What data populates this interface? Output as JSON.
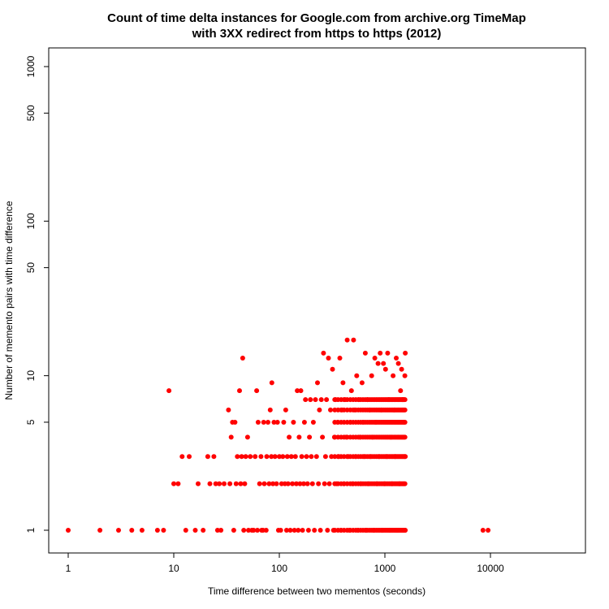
{
  "chart_data": {
    "type": "scatter",
    "title_line1": "Count of time delta instances for Google.com from archive.org TimeMap",
    "title_line2": "with 3XX redirect from https to https (2012)",
    "xlabel": "Time difference between two mementos (seconds)",
    "ylabel": "Number of memento pairs with time difference",
    "x_scale": "log",
    "y_scale": "log",
    "xlim": [
      0.6,
      60000
    ],
    "ylim": [
      0.85,
      1400
    ],
    "grid": false,
    "point_color": "#ff0000",
    "x_ticks": [
      {
        "value": 1,
        "label": "1"
      },
      {
        "value": 10,
        "label": "10"
      },
      {
        "value": 100,
        "label": "100"
      },
      {
        "value": 1000,
        "label": "1000"
      },
      {
        "value": 10000,
        "label": "10000"
      }
    ],
    "y_ticks": [
      {
        "value": 1,
        "label": "1"
      },
      {
        "value": 5,
        "label": "5"
      },
      {
        "value": 10,
        "label": "10"
      },
      {
        "value": 50,
        "label": "50"
      },
      {
        "value": 100,
        "label": "100"
      },
      {
        "value": 500,
        "label": "500"
      },
      {
        "value": 1000,
        "label": "1000"
      }
    ],
    "points": [
      [
        1,
        1
      ],
      [
        2,
        1
      ],
      [
        3,
        1
      ],
      [
        4,
        1
      ],
      [
        5,
        1
      ],
      [
        7,
        1
      ],
      [
        8,
        1
      ],
      [
        9,
        8
      ],
      [
        10,
        2
      ],
      [
        11,
        2
      ],
      [
        12,
        3
      ],
      [
        13,
        1
      ],
      [
        14,
        3
      ],
      [
        16,
        1
      ],
      [
        17,
        2
      ],
      [
        19,
        1
      ],
      [
        21,
        3
      ],
      [
        22,
        2
      ],
      [
        24,
        3
      ],
      [
        25,
        2
      ],
      [
        26,
        1
      ],
      [
        27,
        2
      ],
      [
        28,
        1
      ],
      [
        30,
        2
      ],
      [
        33,
        6
      ],
      [
        34,
        2
      ],
      [
        35,
        4
      ],
      [
        36,
        5
      ],
      [
        37,
        1
      ],
      [
        38,
        5
      ],
      [
        39,
        2
      ],
      [
        40,
        3
      ],
      [
        42,
        8
      ],
      [
        43,
        2
      ],
      [
        44,
        3
      ],
      [
        45,
        13
      ],
      [
        46,
        1
      ],
      [
        47,
        2
      ],
      [
        48,
        3
      ],
      [
        50,
        4
      ],
      [
        51,
        1
      ],
      [
        53,
        3
      ],
      [
        55,
        1
      ],
      [
        57,
        1
      ],
      [
        59,
        3
      ],
      [
        61,
        8
      ],
      [
        62,
        1
      ],
      [
        63,
        5
      ],
      [
        65,
        2
      ],
      [
        67,
        3
      ],
      [
        68,
        1
      ],
      [
        70,
        1
      ],
      [
        71,
        5
      ],
      [
        72,
        2
      ],
      [
        75,
        1
      ],
      [
        76,
        3
      ],
      [
        78,
        5
      ],
      [
        80,
        2
      ],
      [
        82,
        6
      ],
      [
        84,
        3
      ],
      [
        85,
        9
      ],
      [
        87,
        2
      ],
      [
        89,
        5
      ],
      [
        91,
        3
      ],
      [
        94,
        2
      ],
      [
        96,
        5
      ],
      [
        98,
        1
      ],
      [
        100,
        3
      ],
      [
        103,
        1
      ],
      [
        105,
        2
      ],
      [
        108,
        3
      ],
      [
        110,
        5
      ],
      [
        113,
        2
      ],
      [
        115,
        6
      ],
      [
        117,
        1
      ],
      [
        119,
        3
      ],
      [
        121,
        2
      ],
      [
        124,
        4
      ],
      [
        127,
        1
      ],
      [
        130,
        3
      ],
      [
        133,
        2
      ],
      [
        136,
        5
      ],
      [
        139,
        1
      ],
      [
        142,
        3
      ],
      [
        145,
        2
      ],
      [
        148,
        8
      ],
      [
        151,
        1
      ],
      [
        154,
        4
      ],
      [
        157,
        2
      ],
      [
        160,
        8
      ],
      [
        163,
        3
      ],
      [
        166,
        1
      ],
      [
        170,
        2
      ],
      [
        173,
        5
      ],
      [
        177,
        7
      ],
      [
        181,
        3
      ],
      [
        185,
        2
      ],
      [
        189,
        1
      ],
      [
        193,
        4
      ],
      [
        197,
        7
      ],
      [
        201,
        3
      ],
      [
        206,
        2
      ],
      [
        210,
        5
      ],
      [
        215,
        1
      ],
      [
        220,
        7
      ],
      [
        225,
        3
      ],
      [
        230,
        9
      ],
      [
        235,
        2
      ],
      [
        240,
        6
      ],
      [
        245,
        1
      ],
      [
        250,
        7
      ],
      [
        256,
        4
      ],
      [
        262,
        14
      ],
      [
        268,
        2
      ],
      [
        274,
        3
      ],
      [
        280,
        7
      ],
      [
        286,
        1
      ],
      [
        292,
        13
      ],
      [
        298,
        2
      ],
      [
        305,
        6
      ],
      [
        312,
        3
      ],
      [
        319,
        11
      ],
      [
        326,
        1
      ],
      [
        333,
        4
      ],
      [
        341,
        7
      ],
      [
        349,
        2
      ],
      [
        357,
        5
      ],
      [
        365,
        3
      ],
      [
        374,
        13
      ],
      [
        383,
        1
      ],
      [
        392,
        6
      ],
      [
        401,
        9
      ],
      [
        410,
        2
      ],
      [
        420,
        7
      ],
      [
        430,
        4
      ],
      [
        440,
        17
      ],
      [
        450,
        3
      ],
      [
        460,
        1
      ],
      [
        471,
        5
      ],
      [
        482,
        8
      ],
      [
        494,
        2
      ],
      [
        505,
        17
      ],
      [
        517,
        6
      ],
      [
        529,
        3
      ],
      [
        541,
        10
      ],
      [
        554,
        1
      ],
      [
        567,
        7
      ],
      [
        580,
        4
      ],
      [
        594,
        2
      ],
      [
        608,
        9
      ],
      [
        622,
        5
      ],
      [
        637,
        3
      ],
      [
        652,
        14
      ],
      [
        667,
        1
      ],
      [
        683,
        7
      ],
      [
        699,
        2
      ],
      [
        715,
        6
      ],
      [
        732,
        3
      ],
      [
        749,
        10
      ],
      [
        767,
        4
      ],
      [
        785,
        1
      ],
      [
        803,
        13
      ],
      [
        822,
        5
      ],
      [
        842,
        2
      ],
      [
        862,
        12
      ],
      [
        882,
        3
      ],
      [
        903,
        14
      ],
      [
        924,
        6
      ],
      [
        946,
        1
      ],
      [
        968,
        12
      ],
      [
        991,
        2
      ],
      [
        1015,
        11
      ],
      [
        1039,
        3
      ],
      [
        1063,
        14
      ],
      [
        1088,
        7
      ],
      [
        1114,
        1
      ],
      [
        1140,
        4
      ],
      [
        1167,
        2
      ],
      [
        1195,
        10
      ],
      [
        1223,
        6
      ],
      [
        1252,
        3
      ],
      [
        1281,
        13
      ],
      [
        1312,
        1
      ],
      [
        1343,
        12
      ],
      [
        1375,
        2
      ],
      [
        1407,
        8
      ],
      [
        1440,
        11
      ],
      [
        1475,
        7
      ],
      [
        1510,
        5
      ],
      [
        1545,
        10
      ],
      [
        1560,
        14
      ],
      [
        1560,
        3
      ],
      [
        1560,
        1
      ],
      [
        8500,
        1
      ],
      [
        9500,
        1
      ]
    ],
    "dense_columns_x": [
      335,
      360,
      385,
      410,
      440,
      470,
      500,
      530,
      560,
      590,
      620,
      650,
      680,
      710,
      740,
      770,
      800,
      830,
      860,
      890,
      920,
      950,
      980,
      1010,
      1040,
      1070,
      1100,
      1130,
      1160,
      1190,
      1220,
      1250,
      1280,
      1310,
      1340,
      1370,
      1400,
      1430,
      1460,
      1490,
      1520,
      1550
    ],
    "dense_levels_y": [
      1,
      2,
      3,
      4,
      5,
      6,
      7
    ]
  }
}
